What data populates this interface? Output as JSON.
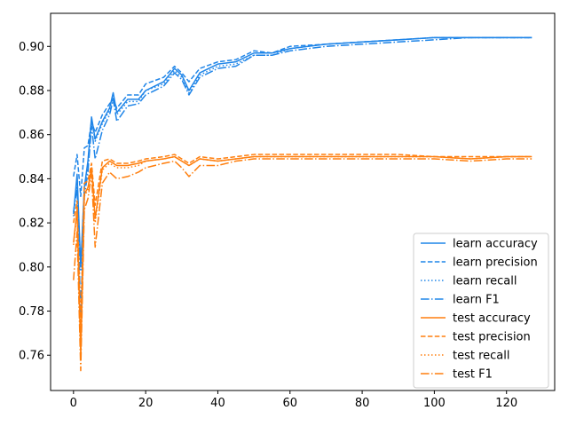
{
  "chart_data": {
    "type": "line",
    "title": "",
    "xlabel": "",
    "ylabel": "",
    "xlim": [
      -6.35,
      133.35
    ],
    "ylim": [
      0.744,
      0.915
    ],
    "xticks": [
      0,
      20,
      40,
      60,
      80,
      100,
      120
    ],
    "yticks": [
      0.76,
      0.78,
      0.8,
      0.82,
      0.84,
      0.86,
      0.88,
      0.9
    ],
    "ytick_labels": [
      "0.76",
      "0.78",
      "0.80",
      "0.82",
      "0.84",
      "0.86",
      "0.88",
      "0.90"
    ],
    "grid": false,
    "legend_position": "lower-right",
    "colors": {
      "learn": "#1f85e8",
      "test": "#ff7f0e"
    },
    "series": [
      {
        "name": "learn accuracy",
        "group": "learn",
        "style": "solid",
        "x": [
          0,
          1,
          2,
          3,
          4,
          5,
          6,
          8,
          10,
          11,
          12,
          15,
          18,
          20,
          25,
          28,
          30,
          32,
          35,
          40,
          45,
          50,
          55,
          60,
          70,
          80,
          90,
          100,
          110,
          120,
          127
        ],
        "y": [
          0.824,
          0.842,
          0.8,
          0.836,
          0.848,
          0.868,
          0.858,
          0.866,
          0.872,
          0.879,
          0.87,
          0.876,
          0.876,
          0.88,
          0.884,
          0.89,
          0.887,
          0.88,
          0.888,
          0.892,
          0.893,
          0.897,
          0.897,
          0.899,
          0.901,
          0.902,
          0.903,
          0.904,
          0.904,
          0.904,
          0.904
        ]
      },
      {
        "name": "learn precision",
        "group": "learn",
        "style": "dashed",
        "x": [
          0,
          1,
          2,
          3,
          4,
          5,
          6,
          8,
          10,
          11,
          12,
          15,
          18,
          20,
          25,
          28,
          30,
          32,
          35,
          40,
          45,
          50,
          55,
          60,
          70,
          80,
          90,
          100,
          110,
          120,
          127
        ],
        "y": [
          0.841,
          0.851,
          0.832,
          0.854,
          0.855,
          0.866,
          0.861,
          0.869,
          0.874,
          0.876,
          0.872,
          0.878,
          0.878,
          0.883,
          0.886,
          0.891,
          0.888,
          0.884,
          0.89,
          0.893,
          0.894,
          0.898,
          0.897,
          0.9,
          0.901,
          0.902,
          0.903,
          0.904,
          0.904,
          0.904,
          0.904
        ]
      },
      {
        "name": "learn recall",
        "group": "learn",
        "style": "dotted",
        "x": [
          0,
          1,
          2,
          3,
          4,
          5,
          6,
          8,
          10,
          11,
          12,
          15,
          18,
          20,
          25,
          28,
          30,
          32,
          35,
          40,
          45,
          50,
          55,
          60,
          70,
          80,
          90,
          100,
          110,
          120,
          127
        ],
        "y": [
          0.823,
          0.84,
          0.798,
          0.835,
          0.846,
          0.867,
          0.857,
          0.865,
          0.871,
          0.878,
          0.869,
          0.875,
          0.875,
          0.88,
          0.883,
          0.889,
          0.886,
          0.879,
          0.887,
          0.891,
          0.892,
          0.896,
          0.896,
          0.899,
          0.901,
          0.902,
          0.903,
          0.904,
          0.904,
          0.904,
          0.904
        ]
      },
      {
        "name": "learn F1",
        "group": "learn",
        "style": "dashdot",
        "x": [
          0,
          1,
          2,
          3,
          4,
          5,
          6,
          8,
          10,
          11,
          12,
          15,
          18,
          20,
          25,
          28,
          30,
          32,
          35,
          40,
          45,
          50,
          55,
          60,
          70,
          80,
          90,
          100,
          110,
          120,
          127
        ],
        "y": [
          0.825,
          0.836,
          0.778,
          0.832,
          0.843,
          0.864,
          0.849,
          0.862,
          0.869,
          0.876,
          0.866,
          0.873,
          0.874,
          0.878,
          0.882,
          0.888,
          0.885,
          0.878,
          0.886,
          0.89,
          0.891,
          0.896,
          0.896,
          0.898,
          0.9,
          0.901,
          0.902,
          0.903,
          0.904,
          0.904,
          0.904
        ]
      },
      {
        "name": "test accuracy",
        "group": "test",
        "style": "solid",
        "x": [
          0,
          1,
          2,
          3,
          4,
          5,
          6,
          8,
          10,
          12,
          15,
          18,
          20,
          25,
          28,
          30,
          32,
          35,
          40,
          45,
          50,
          55,
          60,
          65,
          70,
          80,
          90,
          100,
          110,
          120,
          127
        ],
        "y": [
          0.811,
          0.826,
          0.76,
          0.833,
          0.836,
          0.845,
          0.822,
          0.845,
          0.848,
          0.846,
          0.846,
          0.847,
          0.848,
          0.849,
          0.85,
          0.848,
          0.846,
          0.849,
          0.848,
          0.849,
          0.85,
          0.85,
          0.85,
          0.85,
          0.85,
          0.85,
          0.85,
          0.85,
          0.849,
          0.85,
          0.85
        ]
      },
      {
        "name": "test precision",
        "group": "test",
        "style": "dashed",
        "x": [
          0,
          1,
          2,
          3,
          4,
          5,
          6,
          8,
          10,
          12,
          15,
          18,
          20,
          25,
          28,
          30,
          32,
          35,
          40,
          45,
          50,
          55,
          60,
          65,
          70,
          80,
          90,
          100,
          110,
          120,
          127
        ],
        "y": [
          0.82,
          0.83,
          0.772,
          0.838,
          0.839,
          0.847,
          0.828,
          0.848,
          0.849,
          0.847,
          0.847,
          0.848,
          0.849,
          0.85,
          0.851,
          0.849,
          0.847,
          0.85,
          0.849,
          0.85,
          0.851,
          0.851,
          0.851,
          0.851,
          0.851,
          0.851,
          0.851,
          0.85,
          0.85,
          0.85,
          0.85
        ]
      },
      {
        "name": "test recall",
        "group": "test",
        "style": "dotted",
        "x": [
          0,
          1,
          2,
          3,
          4,
          5,
          6,
          8,
          10,
          12,
          15,
          18,
          20,
          25,
          28,
          30,
          32,
          35,
          40,
          45,
          50,
          55,
          60,
          65,
          70,
          80,
          90,
          100,
          110,
          120,
          127
        ],
        "y": [
          0.81,
          0.825,
          0.758,
          0.832,
          0.835,
          0.844,
          0.82,
          0.844,
          0.847,
          0.845,
          0.845,
          0.846,
          0.848,
          0.849,
          0.85,
          0.848,
          0.846,
          0.849,
          0.848,
          0.849,
          0.85,
          0.85,
          0.85,
          0.85,
          0.85,
          0.85,
          0.85,
          0.85,
          0.849,
          0.85,
          0.85
        ]
      },
      {
        "name": "test F1",
        "group": "test",
        "style": "dashdot",
        "x": [
          0,
          1,
          2,
          3,
          4,
          5,
          6,
          8,
          10,
          12,
          15,
          18,
          20,
          25,
          28,
          30,
          32,
          35,
          40,
          45,
          50,
          55,
          60,
          65,
          70,
          80,
          90,
          100,
          110,
          120,
          127
        ],
        "y": [
          0.794,
          0.816,
          0.753,
          0.826,
          0.831,
          0.842,
          0.809,
          0.838,
          0.843,
          0.84,
          0.841,
          0.843,
          0.845,
          0.847,
          0.848,
          0.845,
          0.841,
          0.846,
          0.846,
          0.848,
          0.849,
          0.849,
          0.849,
          0.849,
          0.849,
          0.849,
          0.849,
          0.849,
          0.848,
          0.849,
          0.849
        ]
      }
    ]
  }
}
